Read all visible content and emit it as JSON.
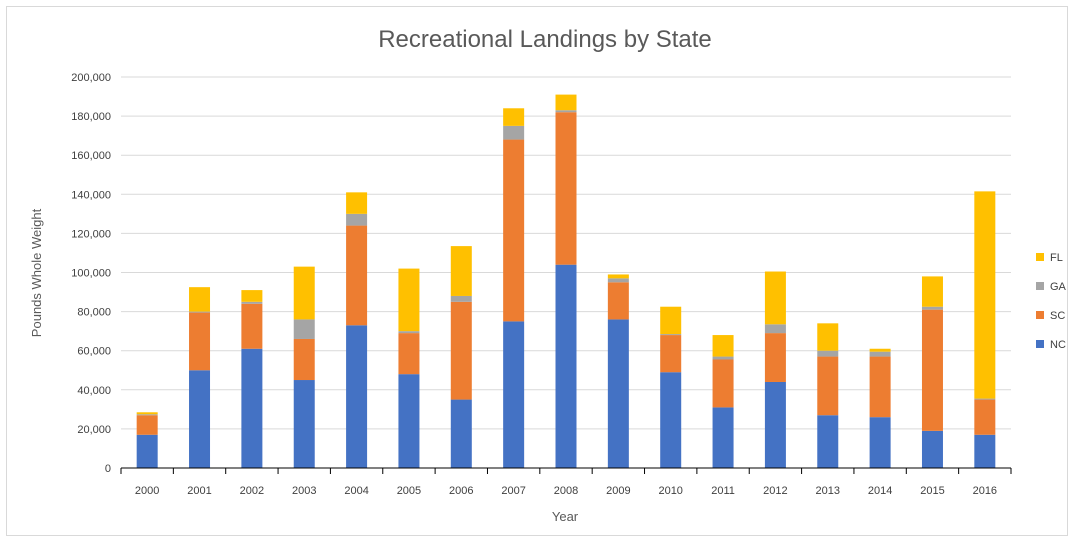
{
  "chart_data": {
    "type": "bar",
    "stacked": true,
    "title": "Recreational Landings by State",
    "xlabel": "Year",
    "ylabel": "Pounds Whole Weight",
    "ylim": [
      0,
      200000
    ],
    "yticks": [
      0,
      20000,
      40000,
      60000,
      80000,
      100000,
      120000,
      140000,
      160000,
      180000,
      200000
    ],
    "ytick_labels": [
      "0",
      "20,000",
      "40,000",
      "60,000",
      "80,000",
      "100,000",
      "120,000",
      "140,000",
      "160,000",
      "180,000",
      "200,000"
    ],
    "grid": true,
    "legend_position": "right",
    "categories": [
      "2000",
      "2001",
      "2002",
      "2003",
      "2004",
      "2005",
      "2006",
      "2007",
      "2008",
      "2009",
      "2010",
      "2011",
      "2012",
      "2013",
      "2014",
      "2015",
      "2016"
    ],
    "series": [
      {
        "name": "NC",
        "color": "#4472c4",
        "values": [
          17000,
          50000,
          61000,
          45000,
          73000,
          48000,
          35000,
          75000,
          104000,
          76000,
          49000,
          31000,
          44000,
          27000,
          26000,
          19000,
          17000
        ]
      },
      {
        "name": "SC",
        "color": "#ed7d31",
        "values": [
          10000,
          29500,
          23000,
          21000,
          51000,
          21000,
          50000,
          93000,
          78000,
          19000,
          19000,
          24500,
          25000,
          30000,
          31000,
          62000,
          18000
        ]
      },
      {
        "name": "GA",
        "color": "#a5a5a5",
        "values": [
          500,
          500,
          1000,
          10000,
          6000,
          1000,
          3000,
          7000,
          1000,
          2000,
          500,
          1500,
          4500,
          3000,
          2500,
          1500,
          500
        ]
      },
      {
        "name": "FL",
        "color": "#ffc000",
        "values": [
          1000,
          12500,
          6000,
          27000,
          11000,
          32000,
          25500,
          9000,
          8000,
          2000,
          14000,
          11000,
          27000,
          14000,
          1500,
          15500,
          106000
        ]
      }
    ],
    "legend_order": [
      "FL",
      "GA",
      "SC",
      "NC"
    ]
  }
}
